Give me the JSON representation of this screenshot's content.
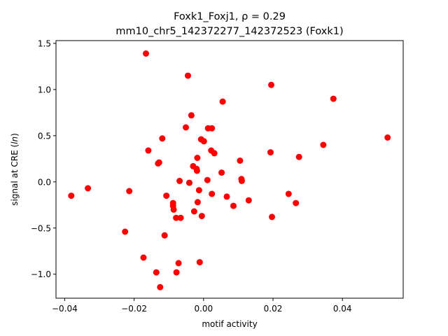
{
  "chart_data": {
    "type": "scatter",
    "title_line1": "Foxk1_Foxj1, ρ = 0.29",
    "title_line2": "mm10_chr5_142372277_142372523 (Foxk1)",
    "xlabel": "motif activity",
    "ylabel": "signal at CRE (ln)",
    "xlim": [
      -0.0425,
      0.0575
    ],
    "ylim": [
      -1.26,
      1.53
    ],
    "xticks": [
      -0.04,
      -0.02,
      0.0,
      0.02,
      0.04
    ],
    "xtick_labels": [
      "−0.04",
      "−0.02",
      "0.00",
      "0.02",
      "0.04"
    ],
    "yticks": [
      -1.0,
      -0.5,
      0.0,
      0.5,
      1.0,
      1.5
    ],
    "ytick_labels": [
      "−1.0",
      "−0.5",
      "0.0",
      "0.5",
      "1.0",
      "1.5"
    ],
    "marker_color": "#ff0000",
    "grid": false,
    "points": [
      {
        "x": -0.0381,
        "y": -0.15
      },
      {
        "x": -0.0333,
        "y": -0.07
      },
      {
        "x": -0.0214,
        "y": -0.1
      },
      {
        "x": -0.0226,
        "y": -0.54
      },
      {
        "x": -0.0173,
        "y": -0.82
      },
      {
        "x": -0.0166,
        "y": 1.39
      },
      {
        "x": -0.0159,
        "y": 0.34
      },
      {
        "x": -0.0136,
        "y": -0.98
      },
      {
        "x": -0.0131,
        "y": 0.2
      },
      {
        "x": -0.0128,
        "y": 0.21
      },
      {
        "x": -0.0125,
        "y": -1.14
      },
      {
        "x": -0.0119,
        "y": 0.47
      },
      {
        "x": -0.0112,
        "y": -0.58
      },
      {
        "x": -0.0107,
        "y": -0.15
      },
      {
        "x": -0.0088,
        "y": -0.23
      },
      {
        "x": -0.0088,
        "y": -0.26
      },
      {
        "x": -0.0086,
        "y": -0.3
      },
      {
        "x": -0.0079,
        "y": -0.39
      },
      {
        "x": -0.0078,
        "y": -0.98
      },
      {
        "x": -0.0072,
        "y": -0.88
      },
      {
        "x": -0.0069,
        "y": 0.01
      },
      {
        "x": -0.0066,
        "y": -0.39
      },
      {
        "x": -0.0051,
        "y": 0.59
      },
      {
        "x": -0.0045,
        "y": 1.15
      },
      {
        "x": -0.0041,
        "y": -0.01
      },
      {
        "x": -0.0035,
        "y": 0.72
      },
      {
        "x": -0.003,
        "y": 0.17
      },
      {
        "x": -0.0027,
        "y": -0.32
      },
      {
        "x": -0.002,
        "y": 0.14
      },
      {
        "x": -0.0019,
        "y": 0.12
      },
      {
        "x": -0.0018,
        "y": 0.26
      },
      {
        "x": -0.0017,
        "y": -0.22
      },
      {
        "x": -0.0013,
        "y": -0.09
      },
      {
        "x": -0.0011,
        "y": -0.87
      },
      {
        "x": -0.0007,
        "y": 0.46
      },
      {
        "x": -0.0005,
        "y": -0.37
      },
      {
        "x": 0.0001,
        "y": 0.44
      },
      {
        "x": 0.0011,
        "y": 0.02
      },
      {
        "x": 0.0013,
        "y": 0.58
      },
      {
        "x": 0.0022,
        "y": 0.34
      },
      {
        "x": 0.0024,
        "y": 0.58
      },
      {
        "x": 0.0024,
        "y": -0.13
      },
      {
        "x": 0.0031,
        "y": 0.31
      },
      {
        "x": 0.0052,
        "y": 0.1
      },
      {
        "x": 0.0055,
        "y": 0.87
      },
      {
        "x": 0.0067,
        "y": -0.16
      },
      {
        "x": 0.0086,
        "y": -0.26
      },
      {
        "x": 0.0105,
        "y": 0.23
      },
      {
        "x": 0.0109,
        "y": 0.03
      },
      {
        "x": 0.011,
        "y": 0.01
      },
      {
        "x": 0.013,
        "y": -0.2
      },
      {
        "x": 0.0193,
        "y": 0.32
      },
      {
        "x": 0.0195,
        "y": 1.05
      },
      {
        "x": 0.0197,
        "y": -0.38
      },
      {
        "x": 0.0245,
        "y": -0.13
      },
      {
        "x": 0.0266,
        "y": -0.23
      },
      {
        "x": 0.0275,
        "y": 0.27
      },
      {
        "x": 0.0345,
        "y": 0.4
      },
      {
        "x": 0.0374,
        "y": 0.9
      },
      {
        "x": 0.053,
        "y": 0.48
      }
    ]
  }
}
